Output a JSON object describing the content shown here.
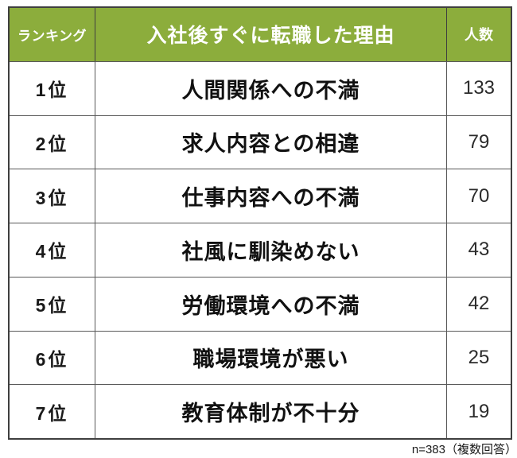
{
  "colors": {
    "header_background": "#8CAD3C",
    "header_text": "#ffffff",
    "outer_border": "#3f3f3f",
    "inner_border": "#595959",
    "body_text": "#111111"
  },
  "header": {
    "rank_label": "ランキング",
    "reason_label": "入社後すぐに転職した理由",
    "count_label": "人数"
  },
  "rows": [
    {
      "rank": "1位",
      "reason": "人間関係への不満",
      "count": "133"
    },
    {
      "rank": "2位",
      "reason": "求人内容との相違",
      "count": "79"
    },
    {
      "rank": "3位",
      "reason": "仕事内容への不満",
      "count": "70"
    },
    {
      "rank": "4位",
      "reason": "社風に馴染めない",
      "count": "43"
    },
    {
      "rank": "5位",
      "reason": "労働環境への不満",
      "count": "42"
    },
    {
      "rank": "6位",
      "reason": "職場環境が悪い",
      "count": "25"
    },
    {
      "rank": "7位",
      "reason": "教育体制が不十分",
      "count": "19"
    }
  ],
  "footer": {
    "note": "n=383（複数回答）"
  },
  "chart_data": {
    "type": "table",
    "title": "入社後すぐに転職した理由",
    "columns": [
      "ランキング",
      "入社後すぐに転職した理由",
      "人数"
    ],
    "ranks": [
      "1位",
      "2位",
      "3位",
      "4位",
      "5位",
      "6位",
      "7位"
    ],
    "categories": [
      "人間関係への不満",
      "求人内容との相違",
      "仕事内容への不満",
      "社風に馴染めない",
      "労働環境への不満",
      "職場環境が悪い",
      "教育体制が不十分"
    ],
    "values": [
      133,
      79,
      70,
      43,
      42,
      25,
      19
    ],
    "note": "n=383（複数回答）",
    "sample_size": 383
  }
}
